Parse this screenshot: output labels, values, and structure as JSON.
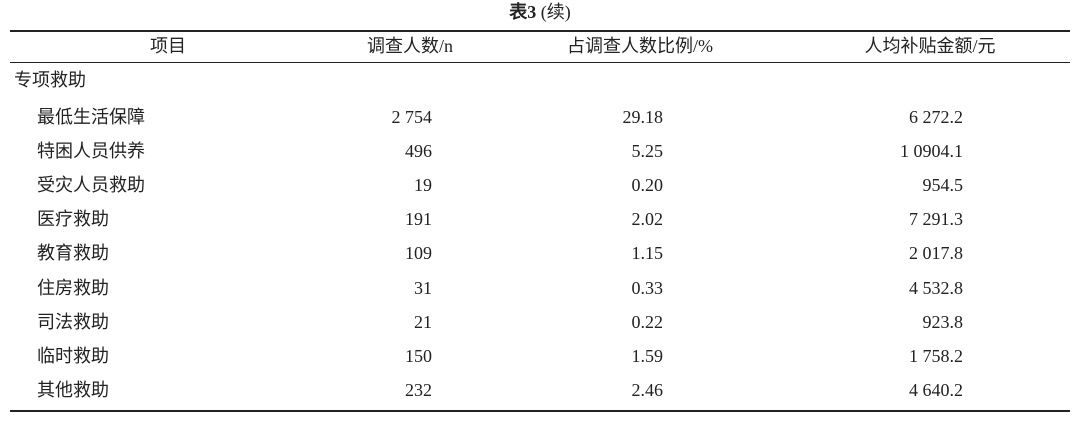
{
  "title": {
    "label": "表3",
    "note": "(续)"
  },
  "table": {
    "header": [
      "项目",
      "调查人数/n",
      "占调查人数比例/%",
      "人均补贴金额/元"
    ],
    "section": "专项救助",
    "rows": [
      [
        "最低生活保障",
        "2 754",
        "29.18",
        "6 272.2"
      ],
      [
        "特困人员供养",
        "496",
        "5.25",
        "1 0904.1"
      ],
      [
        "受灾人员救助",
        "19",
        "0.20",
        "954.5"
      ],
      [
        "医疗救助",
        "191",
        "2.02",
        "7 291.3"
      ],
      [
        "教育救助",
        "109",
        "1.15",
        "2 017.8"
      ],
      [
        "住房救助",
        "31",
        "0.33",
        "4 532.8"
      ],
      [
        "司法救助",
        "21",
        "0.22",
        "923.8"
      ],
      [
        "临时救助",
        "150",
        "1.59",
        "1 758.2"
      ],
      [
        "其他救助",
        "232",
        "2.46",
        "4 640.2"
      ]
    ]
  }
}
